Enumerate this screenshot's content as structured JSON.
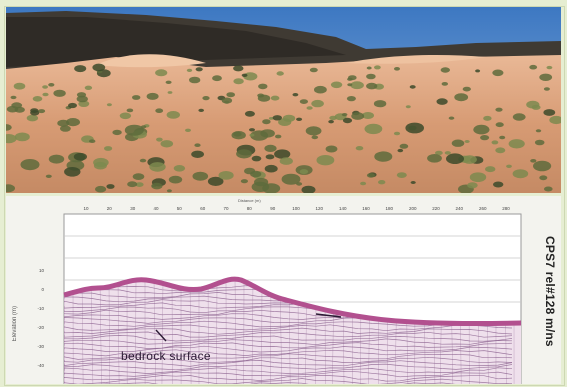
{
  "photo": {
    "subject": "sand-dune-landscape"
  },
  "profile": {
    "x_axis_title": "Distance (m)",
    "x_ticks": [
      "10",
      "20",
      "30",
      "40",
      "50",
      "60",
      "70",
      "80",
      "90",
      "100",
      "120",
      "140",
      "160",
      "180",
      "200",
      "220",
      "240",
      "260",
      "280"
    ],
    "y_axis_title": "Elevation (m)",
    "y_ticks": [
      "10",
      "0",
      "-10",
      "-20",
      "-30",
      "-40"
    ],
    "side_label": "CPS7 rel#128 m/ns",
    "annotation": "bedrock surface",
    "colors": {
      "surface": "#b2508f",
      "grid": "#c7c7c7",
      "reflector": "#8a5f8d"
    }
  }
}
